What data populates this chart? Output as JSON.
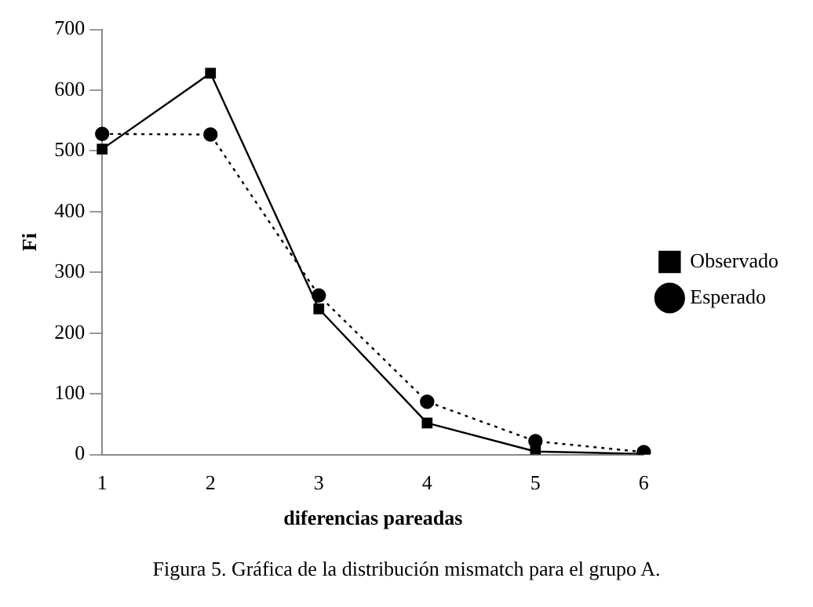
{
  "chart_data": {
    "type": "line",
    "xlabel": "diferencias pareadas",
    "ylabel": "Fi",
    "categories": [
      "1",
      "2",
      "3",
      "4",
      "5",
      "6"
    ],
    "series": [
      {
        "name": "Observado",
        "color": "#000000",
        "values": [
          503,
          628,
          240,
          52,
          5,
          1
        ],
        "marker": "square",
        "line_style": "solid"
      },
      {
        "name": "Esperado",
        "color": "#000000",
        "values": [
          528,
          527,
          262,
          87,
          22,
          4
        ],
        "marker": "circle",
        "line_style": "dotted"
      }
    ],
    "ylim": [
      0,
      700
    ],
    "yticks": [
      0,
      100,
      200,
      300,
      400,
      500,
      600,
      700
    ],
    "grid": false,
    "legend": "right",
    "annotations": [
      "Figura 5. Gráfica de la distribución mismatch para el grupo A."
    ]
  }
}
